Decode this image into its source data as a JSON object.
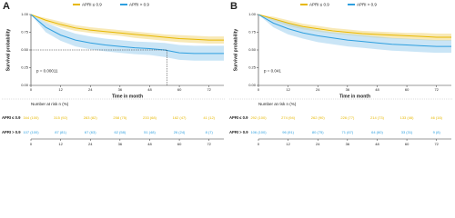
{
  "chart_data": [
    {
      "type": "km",
      "panel": "A",
      "ylabel": "Survival probability",
      "xlabel": "Time in month",
      "annotation": "p = 0.00011",
      "xlim": [
        0,
        78
      ],
      "ylim": [
        0,
        1
      ],
      "xticks": [
        0,
        12,
        24,
        36,
        48,
        60,
        72
      ],
      "yticks": [
        {
          "value": 0,
          "label": "0.00"
        },
        {
          "value": 0.25,
          "label": "0.25"
        },
        {
          "value": 0.5,
          "label": "0.50"
        },
        {
          "value": 0.75,
          "label": "0.75"
        },
        {
          "value": 1,
          "label": "1.00"
        }
      ],
      "x": [
        0,
        6,
        12,
        18,
        24,
        30,
        36,
        42,
        48,
        54,
        60,
        66,
        72,
        78
      ],
      "series": [
        {
          "name": "APRI ≤ 0.9",
          "color": "#e7b800",
          "band": "#f2d77a",
          "values": [
            1,
            0.92,
            0.86,
            0.81,
            0.78,
            0.76,
            0.74,
            0.72,
            0.7,
            0.68,
            0.66,
            0.65,
            0.64,
            0.64
          ],
          "lower": [
            1,
            0.89,
            0.82,
            0.77,
            0.74,
            0.72,
            0.7,
            0.67,
            0.65,
            0.63,
            0.61,
            0.6,
            0.59,
            0.59
          ],
          "upper": [
            1,
            0.95,
            0.9,
            0.85,
            0.82,
            0.8,
            0.78,
            0.76,
            0.74,
            0.72,
            0.71,
            0.7,
            0.69,
            0.69
          ]
        },
        {
          "name": "APRI > 0.9",
          "color": "#2e9fdf",
          "band": "#9fd0ee",
          "values": [
            1,
            0.82,
            0.71,
            0.64,
            0.6,
            0.57,
            0.55,
            0.53,
            0.52,
            0.5,
            0.46,
            0.45,
            0.45,
            0.45
          ],
          "lower": [
            1,
            0.75,
            0.63,
            0.55,
            0.51,
            0.48,
            0.46,
            0.44,
            0.43,
            0.4,
            0.36,
            0.35,
            0.35,
            0.35
          ],
          "upper": [
            1,
            0.89,
            0.8,
            0.73,
            0.69,
            0.66,
            0.64,
            0.62,
            0.61,
            0.6,
            0.57,
            0.56,
            0.56,
            0.56
          ]
        }
      ],
      "median": {
        "x": 55,
        "y": 0.5
      },
      "risk_table": {
        "title": "Number at risk n (%)",
        "rows": [
          {
            "name": "APRI ≤ 0.9",
            "cells": [
              "344 (100)",
              "315 (92)",
              "283 (82)",
              "258 (75)",
              "233 (68)",
              "162 (47)",
              "41 (12)"
            ]
          },
          {
            "name": "APRI > 0.9",
            "cells": [
              "107 (100)",
              "87 (81)",
              "67 (63)",
              "62 (58)",
              "51 (48)",
              "26 (24)",
              "8 (7)"
            ]
          }
        ]
      }
    },
    {
      "type": "km",
      "panel": "B",
      "ylabel": "Survival probability",
      "xlabel": "Time in month",
      "annotation": "p = 0.041",
      "xlim": [
        0,
        78
      ],
      "ylim": [
        0,
        1
      ],
      "xticks": [
        0,
        12,
        24,
        36,
        48,
        60,
        72
      ],
      "yticks": [
        {
          "value": 0,
          "label": "0.00"
        },
        {
          "value": 0.25,
          "label": "0.25"
        },
        {
          "value": 0.5,
          "label": "0.50"
        },
        {
          "value": 0.75,
          "label": "0.75"
        },
        {
          "value": 1,
          "label": "1.00"
        }
      ],
      "x": [
        0,
        6,
        12,
        18,
        24,
        30,
        36,
        42,
        48,
        54,
        60,
        66,
        72,
        78
      ],
      "series": [
        {
          "name": "APRI ≤ 0.9",
          "color": "#e7b800",
          "band": "#f2d77a",
          "values": [
            1,
            0.94,
            0.88,
            0.83,
            0.8,
            0.77,
            0.75,
            0.73,
            0.72,
            0.71,
            0.7,
            0.69,
            0.68,
            0.68
          ],
          "lower": [
            1,
            0.91,
            0.84,
            0.79,
            0.76,
            0.73,
            0.71,
            0.69,
            0.67,
            0.66,
            0.65,
            0.64,
            0.63,
            0.63
          ],
          "upper": [
            1,
            0.97,
            0.92,
            0.87,
            0.84,
            0.81,
            0.79,
            0.77,
            0.76,
            0.75,
            0.74,
            0.74,
            0.73,
            0.73
          ]
        },
        {
          "name": "APRI > 0.9",
          "color": "#2e9fdf",
          "band": "#9fd0ee",
          "values": [
            1,
            0.88,
            0.8,
            0.74,
            0.7,
            0.67,
            0.64,
            0.62,
            0.6,
            0.58,
            0.57,
            0.56,
            0.55,
            0.55
          ],
          "lower": [
            1,
            0.82,
            0.72,
            0.66,
            0.61,
            0.58,
            0.55,
            0.53,
            0.51,
            0.49,
            0.48,
            0.47,
            0.46,
            0.46
          ],
          "upper": [
            1,
            0.94,
            0.88,
            0.82,
            0.78,
            0.75,
            0.73,
            0.71,
            0.69,
            0.67,
            0.66,
            0.65,
            0.64,
            0.64
          ]
        }
      ],
      "risk_table": {
        "title": "Number at risk n (%)",
        "rows": [
          {
            "name": "APRI ≤ 0.9",
            "cells": [
              "292 (100)",
              "274 (94)",
              "262 (90)",
              "226 (77)",
              "214 (73)",
              "133 (46)",
              "46 (16)"
            ]
          },
          {
            "name": "APRI > 0.9",
            "cells": [
              "106 (100)",
              "96 (91)",
              "80 (75)",
              "71 (67)",
              "64 (60)",
              "33 (31)",
              "9 (8)"
            ]
          }
        ]
      }
    }
  ]
}
